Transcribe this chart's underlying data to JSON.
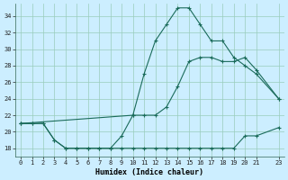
{
  "xlabel": "Humidex (Indice chaleur)",
  "bg_color": "#cceeff",
  "grid_color": "#99ccbb",
  "line_color": "#1a6b5a",
  "xlim": [
    -0.5,
    23.5
  ],
  "ylim": [
    17,
    35.5
  ],
  "xticks": [
    0,
    1,
    2,
    3,
    4,
    5,
    6,
    7,
    8,
    9,
    10,
    11,
    12,
    13,
    14,
    15,
    16,
    17,
    18,
    19,
    20,
    21,
    23
  ],
  "yticks": [
    18,
    20,
    22,
    24,
    26,
    28,
    30,
    32,
    34
  ],
  "line1_x": [
    0,
    1,
    2,
    3,
    4,
    5,
    6,
    7,
    8,
    9,
    10,
    11,
    12,
    13,
    14,
    15,
    16,
    17,
    18,
    19,
    20,
    21,
    23
  ],
  "line1_y": [
    21,
    21,
    21,
    19,
    18,
    18,
    18,
    18,
    18,
    18,
    18,
    18,
    18,
    18,
    18,
    18,
    18,
    18,
    18,
    18,
    19.5,
    19.5,
    20.5
  ],
  "line2_x": [
    0,
    1,
    2,
    3,
    4,
    5,
    6,
    7,
    8,
    9,
    10,
    11,
    12,
    13,
    14,
    15,
    16,
    17,
    18,
    19,
    20,
    21,
    23
  ],
  "line2_y": [
    21,
    21,
    21,
    19,
    18,
    18,
    18,
    18,
    18,
    19.5,
    22,
    27,
    31,
    33,
    35,
    35,
    33,
    31,
    31,
    29,
    28,
    27,
    24
  ],
  "line3_x": [
    0,
    10,
    11,
    12,
    13,
    14,
    15,
    16,
    17,
    18,
    19,
    20,
    21,
    23
  ],
  "line3_y": [
    21,
    22,
    22,
    22,
    23,
    25.5,
    28.5,
    29,
    29,
    28.5,
    28.5,
    29,
    27.5,
    24
  ]
}
